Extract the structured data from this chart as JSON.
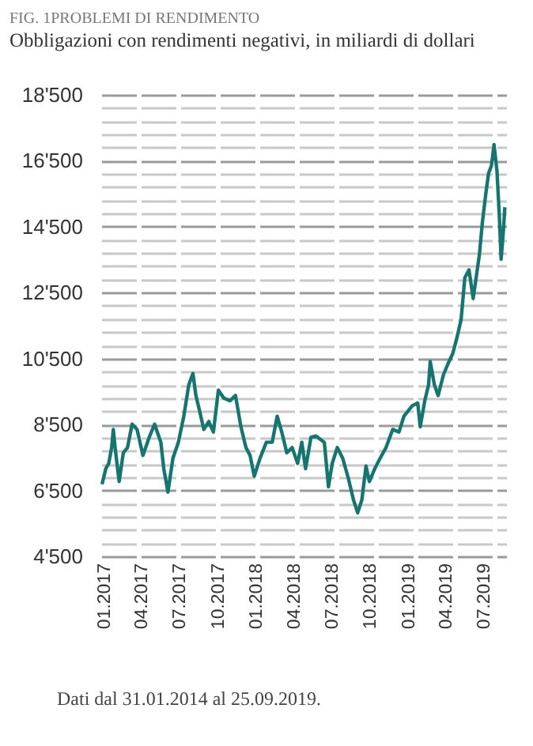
{
  "chart_data": {
    "type": "line",
    "title": "FIG. 1PROBLEMI DI RENDIMENTO",
    "subtitle": "Obbligazioni con rendimenti negativi, in miliardi di dollari",
    "annotations": [
      "Dati dal 31.01.2014 al 25.09.2019."
    ],
    "x": [
      "2016-12-27",
      "2017-01-05",
      "2017-01-12",
      "2017-01-19",
      "2017-01-23",
      "2017-01-28",
      "2017-02-06",
      "2017-02-16",
      "2017-02-26",
      "2017-03-09",
      "2017-03-21",
      "2017-04-04",
      "2017-04-19",
      "2017-05-02",
      "2017-05-17",
      "2017-05-24",
      "2017-06-03",
      "2017-06-15",
      "2017-06-28",
      "2017-07-11",
      "2017-07-23",
      "2017-08-02",
      "2017-08-09",
      "2017-08-18",
      "2017-08-28",
      "2017-09-09",
      "2017-09-20",
      "2017-10-02",
      "2017-10-15",
      "2017-10-30",
      "2017-11-12",
      "2017-11-25",
      "2017-12-07",
      "2017-12-17",
      "2017-12-27",
      "2018-01-10",
      "2018-01-25",
      "2018-02-08",
      "2018-02-20",
      "2018-03-03",
      "2018-03-15",
      "2018-03-28",
      "2018-04-10",
      "2018-04-20",
      "2018-04-29",
      "2018-05-12",
      "2018-05-24",
      "2018-06-13",
      "2018-06-23",
      "2018-07-02",
      "2018-07-14",
      "2018-07-27",
      "2018-08-10",
      "2018-08-22",
      "2018-09-01",
      "2018-09-11",
      "2018-09-21",
      "2018-09-29",
      "2018-10-12",
      "2018-10-25",
      "2018-11-08",
      "2018-11-24",
      "2018-12-09",
      "2018-12-21",
      "2019-01-10",
      "2019-01-23",
      "2019-01-29",
      "2019-02-09",
      "2019-02-18",
      "2019-02-22",
      "2019-03-04",
      "2019-03-13",
      "2019-03-26",
      "2019-04-08",
      "2019-04-17",
      "2019-04-27",
      "2019-05-07",
      "2019-05-16",
      "2019-05-26",
      "2019-06-05",
      "2019-06-13",
      "2019-06-20",
      "2019-06-27",
      "2019-07-06",
      "2019-07-12",
      "2019-07-19",
      "2019-07-25",
      "2019-08-01",
      "2019-08-07",
      "2019-08-11",
      "2019-08-16",
      "2019-08-20"
    ],
    "series": [
      {
        "color": "#17756f",
        "values": [
          6690,
          7160,
          7320,
          7800,
          8350,
          7720,
          6770,
          7640,
          7800,
          8510,
          8350,
          7560,
          8110,
          8510,
          7960,
          7160,
          6450,
          7480,
          7960,
          8750,
          9700,
          10050,
          9380,
          8910,
          8350,
          8590,
          8270,
          9540,
          9300,
          9220,
          9380,
          8430,
          7800,
          7560,
          6930,
          7480,
          7960,
          7960,
          8750,
          8270,
          7640,
          7800,
          7320,
          7960,
          7160,
          8110,
          8150,
          7960,
          6610,
          7320,
          7800,
          7480,
          6850,
          6210,
          5820,
          6210,
          7240,
          6770,
          7160,
          7480,
          7800,
          8350,
          8270,
          8750,
          9070,
          9150,
          8430,
          9220,
          9700,
          10410,
          9700,
          9380,
          10020,
          10410,
          10650,
          11130,
          11680,
          12950,
          13190,
          12320,
          13030,
          13660,
          14620,
          15570,
          16120,
          16360,
          16990,
          16200,
          14770,
          13510,
          14300,
          15090
        ]
      }
    ],
    "xlim": [
      "2016-12-25",
      "2019-08-23"
    ],
    "xticks": [
      {
        "value": "2017-01",
        "label": "01.2017"
      },
      {
        "value": "2017-04",
        "label": "04.2017"
      },
      {
        "value": "2017-07",
        "label": "07.2017"
      },
      {
        "value": "2017-10",
        "label": "10.2017"
      },
      {
        "value": "2018-01",
        "label": "01.2018"
      },
      {
        "value": "2018-04",
        "label": "04.2018"
      },
      {
        "value": "2018-07",
        "label": "07.2018"
      },
      {
        "value": "2018-10",
        "label": "10.2018"
      },
      {
        "value": "2019-01",
        "label": "01.2019"
      },
      {
        "value": "2019-04",
        "label": "04.2019"
      },
      {
        "value": "2019-07",
        "label": "07.2019"
      }
    ],
    "ylim": [
      4500,
      18500
    ],
    "yticks": [
      {
        "value": 4500,
        "label": "4'500"
      },
      {
        "value": 4900,
        "label": null
      },
      {
        "value": 5300,
        "label": null
      },
      {
        "value": 5700,
        "label": null
      },
      {
        "value": 6100,
        "label": null
      },
      {
        "value": 6500,
        "label": "6'500"
      },
      {
        "value": 6900,
        "label": null
      },
      {
        "value": 7300,
        "label": null
      },
      {
        "value": 7700,
        "label": null
      },
      {
        "value": 8100,
        "label": null
      },
      {
        "value": 8500,
        "label": "8'500"
      },
      {
        "value": 8900,
        "label": null
      },
      {
        "value": 9300,
        "label": null
      },
      {
        "value": 9700,
        "label": null
      },
      {
        "value": 10100,
        "label": null
      },
      {
        "value": 10500,
        "label": "10'500"
      },
      {
        "value": 10900,
        "label": null
      },
      {
        "value": 11300,
        "label": null
      },
      {
        "value": 11700,
        "label": null
      },
      {
        "value": 12100,
        "label": null
      },
      {
        "value": 12500,
        "label": "12'500"
      },
      {
        "value": 12900,
        "label": null
      },
      {
        "value": 13300,
        "label": null
      },
      {
        "value": 13700,
        "label": null
      },
      {
        "value": 14100,
        "label": null
      },
      {
        "value": 14500,
        "label": "14'500"
      },
      {
        "value": 14900,
        "label": null
      },
      {
        "value": 15300,
        "label": null
      },
      {
        "value": 15700,
        "label": null
      },
      {
        "value": 16100,
        "label": null
      },
      {
        "value": 16500,
        "label": "16'500"
      },
      {
        "value": 16900,
        "label": null
      },
      {
        "value": 17300,
        "label": null
      },
      {
        "value": 17700,
        "label": null
      },
      {
        "value": 18100,
        "label": null
      },
      {
        "value": 18500,
        "label": "18'500"
      }
    ],
    "grid": "y",
    "line_style": "solid",
    "marker": "none"
  }
}
